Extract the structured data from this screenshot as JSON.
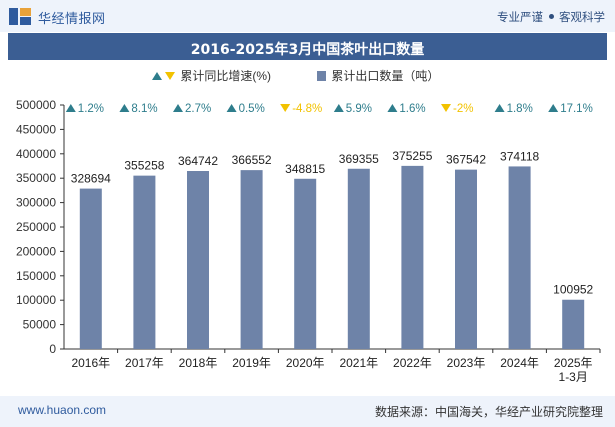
{
  "header": {
    "brand": "华经情报网",
    "right_items": [
      "专业严谨",
      "客观科学"
    ]
  },
  "title": "2016-2025年3月中国茶叶出口数量",
  "legend": {
    "growth_label": "累计同比增速(%)",
    "volume_label": "累计出口数量（吨）"
  },
  "footer": {
    "url": "www.huaon.com",
    "source": "数据来源：中国海关，华经产业研究院整理"
  },
  "colors": {
    "bar": "#6e83a8",
    "up": "#2e7d8c",
    "down": "#f2c200",
    "title_bg": "#3b5e93"
  },
  "chart_data": {
    "type": "bar",
    "categories": [
      "2016年",
      "2017年",
      "2018年",
      "2019年",
      "2020年",
      "2021年",
      "2022年",
      "2023年",
      "2024年",
      "2025年\n1-3月"
    ],
    "series": [
      {
        "name": "累计出口数量（吨）",
        "values": [
          328694,
          355258,
          364742,
          366552,
          348815,
          369355,
          375255,
          367542,
          374118,
          100952
        ]
      }
    ],
    "growth": {
      "name": "累计同比增速(%)",
      "labels": [
        "1.2%",
        "8.1%",
        "2.7%",
        "0.5%",
        "-4.8%",
        "5.9%",
        "1.6%",
        "-2%",
        "1.8%",
        "17.1%"
      ],
      "values": [
        1.2,
        8.1,
        2.7,
        0.5,
        -4.8,
        5.9,
        1.6,
        -2,
        1.8,
        17.1
      ]
    },
    "yticks": [
      0,
      50000,
      100000,
      150000,
      200000,
      250000,
      300000,
      350000,
      400000,
      450000,
      500000
    ],
    "ylim": [
      0,
      500000
    ],
    "grid": false,
    "legend_position": "top"
  }
}
